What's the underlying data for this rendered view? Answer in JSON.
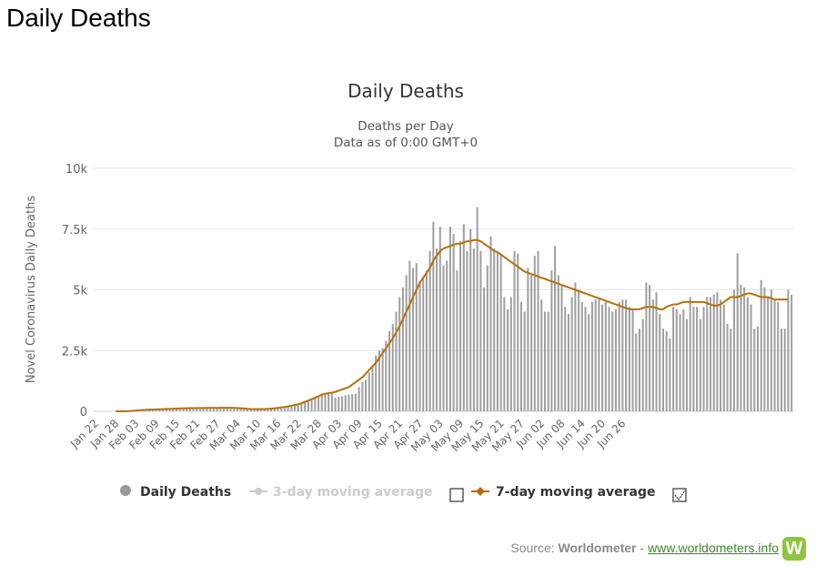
{
  "page": {
    "heading": "Daily Deaths",
    "source_label": "Source:",
    "source_name": "Worldometer",
    "source_sep": "-",
    "source_link": "www.worldometers.info",
    "logo_letter": "W"
  },
  "chart_data": {
    "type": "bar",
    "title": "Daily Deaths",
    "subtitle_lines": [
      "Deaths per Day",
      "Data as of 0:00 GMT+0"
    ],
    "ylabel": "Novel Coronavirus Daily Deaths",
    "ylim": [
      0,
      10000
    ],
    "yticks": [
      {
        "value": 0,
        "label": "0"
      },
      {
        "value": 2500,
        "label": "2.5k"
      },
      {
        "value": 5000,
        "label": "5k"
      },
      {
        "value": 7500,
        "label": "7.5k"
      },
      {
        "value": 10000,
        "label": "10k"
      }
    ],
    "x_start": "Jan 22",
    "x_tick_labels": [
      "Jan 22",
      "Jan 28",
      "Feb 03",
      "Feb 09",
      "Feb 15",
      "Feb 21",
      "Feb 27",
      "Mar 04",
      "Mar 10",
      "Mar 16",
      "Mar 22",
      "Mar 28",
      "Apr 03",
      "Apr 09",
      "Apr 15",
      "Apr 21",
      "Apr 27",
      "May 03",
      "May 09",
      "May 15",
      "May 21",
      "May 27",
      "Jun 02",
      "Jun 08",
      "Jun 14",
      "Jun 20",
      "Jun 26"
    ],
    "x_tick_every": 6,
    "colors": {
      "bars": "#a0a0a0",
      "ma7": "#b86e0c",
      "ma3_legend": "#cccccc",
      "grid": "#e6e6e6"
    },
    "legend": [
      {
        "name": "Daily Deaths",
        "active": true
      },
      {
        "name": "3-day moving average",
        "active": false
      },
      {
        "name": "7-day moving average",
        "active": true
      }
    ],
    "series": [
      {
        "name": "Daily Deaths",
        "kind": "bar",
        "values": [
          0,
          0,
          0,
          0,
          0,
          0,
          0,
          0,
          0,
          0,
          10,
          20,
          30,
          40,
          50,
          60,
          70,
          70,
          80,
          85,
          90,
          95,
          100,
          105,
          110,
          115,
          120,
          125,
          130,
          130,
          130,
          135,
          135,
          140,
          140,
          140,
          142,
          144,
          144,
          146,
          146,
          140,
          135,
          125,
          115,
          105,
          95,
          90,
          90,
          90,
          95,
          100,
          110,
          120,
          140,
          160,
          180,
          200,
          230,
          260,
          290,
          330,
          390,
          440,
          500,
          560,
          620,
          680,
          720,
          750,
          770,
          560,
          600,
          620,
          660,
          680,
          700,
          720,
          1000,
          1200,
          1300,
          1600,
          1900,
          2300,
          2500,
          2600,
          2900,
          3300,
          3600,
          4100,
          4700,
          5100,
          5600,
          6200,
          5900,
          6100,
          5300,
          5500,
          5800,
          6600,
          7800,
          6700,
          7600,
          6000,
          6200,
          7600,
          7300,
          5800,
          7000,
          7700,
          6600,
          7500,
          6700,
          8400,
          6600,
          5100,
          6000,
          7200,
          6700,
          6600,
          6500,
          4700,
          4200,
          4700,
          6600,
          6500,
          4500,
          4100,
          5900,
          5600,
          6400,
          6600,
          4600,
          4100,
          4100,
          5800,
          6800,
          5600,
          5200,
          4300,
          4000,
          4700,
          5300,
          5000,
          4500,
          4300,
          4000,
          4500,
          4600,
          4600,
          4400,
          4500,
          4300,
          4100,
          4200,
          4500,
          4600,
          4600,
          4300,
          4200,
          3200,
          3400,
          3800,
          5300,
          5200,
          4600,
          4900,
          4000,
          3400,
          3300,
          3000,
          4300,
          4200,
          4000,
          4200,
          3800,
          4700,
          4300,
          4300,
          3800,
          4300,
          4700,
          4700,
          4800,
          4900,
          4600,
          4400,
          3600,
          3400,
          5000,
          6500,
          5200,
          5100,
          4700,
          4400,
          3400,
          3500,
          5400,
          5100,
          4700,
          5000,
          4600,
          4500,
          3400,
          3400,
          5000,
          4800
        ]
      },
      {
        "name": "7-day moving average",
        "kind": "line",
        "values": [
          0,
          0,
          0,
          0,
          0,
          0,
          0,
          0,
          0,
          0,
          10,
          20,
          30,
          40,
          50,
          60,
          70,
          70,
          80,
          85,
          90,
          95,
          100,
          105,
          110,
          115,
          120,
          125,
          130,
          130,
          130,
          135,
          135,
          140,
          140,
          140,
          142,
          144,
          144,
          146,
          146,
          140,
          135,
          125,
          115,
          105,
          95,
          90,
          90,
          90,
          95,
          100,
          110,
          120,
          140,
          160,
          180,
          200,
          230,
          260,
          290,
          330,
          390,
          440,
          500,
          560,
          620,
          680,
          720,
          750,
          770,
          800,
          850,
          900,
          950,
          1000,
          1100,
          1200,
          1300,
          1400,
          1550,
          1700,
          1850,
          2000,
          2200,
          2400,
          2600,
          2800,
          3000,
          3250,
          3500,
          3800,
          4100,
          4400,
          4700,
          5000,
          5300,
          5500,
          5700,
          5900,
          6200,
          6400,
          6600,
          6700,
          6750,
          6800,
          6850,
          6900,
          6900,
          6950,
          7000,
          7000,
          7050,
          7050,
          7000,
          6900,
          6800,
          6700,
          6600,
          6550,
          6450,
          6350,
          6250,
          6150,
          6050,
          5950,
          5850,
          5750,
          5700,
          5650,
          5600,
          5550,
          5500,
          5450,
          5400,
          5350,
          5300,
          5250,
          5200,
          5150,
          5100,
          5050,
          5000,
          4950,
          4900,
          4850,
          4800,
          4750,
          4700,
          4650,
          4600,
          4550,
          4500,
          4450,
          4400,
          4350,
          4300,
          4250,
          4200,
          4200,
          4200,
          4200,
          4250,
          4300,
          4300,
          4300,
          4250,
          4200,
          4200,
          4300,
          4350,
          4400,
          4400,
          4450,
          4500,
          4500,
          4500,
          4500,
          4500,
          4500,
          4500,
          4450,
          4400,
          4350,
          4350,
          4400,
          4500,
          4600,
          4700,
          4700,
          4700,
          4750,
          4800,
          4850,
          4850,
          4800,
          4750,
          4700,
          4700,
          4700,
          4650,
          4600,
          4600,
          4600,
          4600,
          4600
        ]
      }
    ]
  }
}
